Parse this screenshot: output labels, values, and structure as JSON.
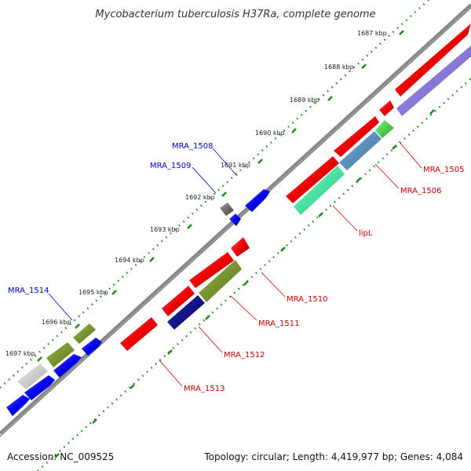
{
  "title": "Mycobacterium tuberculosis H37Ra, complete genome",
  "footer": {
    "accession": "Accession: NC_009525",
    "summary": "Topology: circular; Length: 4,419,977 bp; Genes: 4,084"
  },
  "ticks": [
    {
      "label": "1687 kbp"
    },
    {
      "label": "1688 kbp"
    },
    {
      "label": "1689 kbp"
    },
    {
      "label": "1690 kbp"
    },
    {
      "label": "1691 kbp"
    },
    {
      "label": "1692 kbp"
    },
    {
      "label": "1693 kbp"
    },
    {
      "label": "1694 kbp"
    },
    {
      "label": "1695 kbp"
    },
    {
      "label": "1696 kbp"
    },
    {
      "label": "1697 kbp"
    }
  ],
  "gene_labels": [
    {
      "text": "MRA_1505",
      "strand": "minus",
      "color": "#cc0000"
    },
    {
      "text": "MRA_1506",
      "strand": "minus",
      "color": "#cc0000"
    },
    {
      "text": "lipL",
      "strand": "minus",
      "color": "#cc0000"
    },
    {
      "text": "MRA_1510",
      "strand": "minus",
      "color": "#cc0000"
    },
    {
      "text": "MRA_1511",
      "strand": "minus",
      "color": "#cc0000"
    },
    {
      "text": "MRA_1512",
      "strand": "minus",
      "color": "#cc0000"
    },
    {
      "text": "MRA_1513",
      "strand": "minus",
      "color": "#cc0000"
    },
    {
      "text": "MRA_1508",
      "strand": "plus",
      "color": "#0000cc"
    },
    {
      "text": "MRA_1509",
      "strand": "plus",
      "color": "#0000cc"
    },
    {
      "text": "MRA_1514",
      "strand": "plus",
      "color": "#0000cc"
    }
  ],
  "colors": {
    "cds": "#ee0000",
    "cds_plus": "#0000ee",
    "backbone": "#777777",
    "tick": "#1a8a1a",
    "purple": "#7b68cc",
    "steelblue": "#4682b4",
    "lightgreen": "#33cc33",
    "mint": "#22dd99",
    "olive": "#6b8e23",
    "navy": "#000080",
    "gray": "#666666",
    "lightgray": "#cccccc"
  }
}
